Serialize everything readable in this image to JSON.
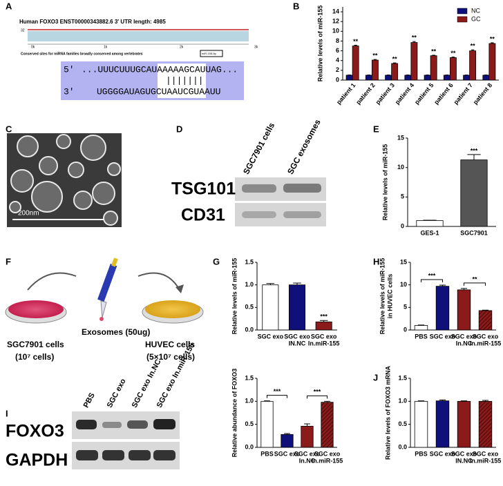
{
  "panel_labels": [
    "A",
    "B",
    "C",
    "D",
    "E",
    "F",
    "G",
    "H",
    "I",
    "J"
  ],
  "panel_a": {
    "title": "Human FOXO3  ENST00000343882.6  3' UTR length: 4985",
    "scale_max": "32",
    "axis_labels": [
      "0k",
      "1k",
      "2k",
      "3k"
    ],
    "conserved_text": "Conserved sites for miRNA families broadly conserved among vertebrates",
    "site_label": "miR-155-5p",
    "seq_top_end": "5'",
    "seq_top": "...UUUCUUUGCAUAAAAAGCAUUAG...",
    "pairing": "|||||||",
    "seq_bottom_end": "3'",
    "seq_bottom": "UGGGGAUAGUGCUAAUCGUAAUU"
  },
  "panel_c": {
    "scale_bar": "200nm"
  },
  "panel_d": {
    "lanes": [
      "SGC7901 cells",
      "SGC exosomes"
    ],
    "rows": [
      "TSG101",
      "CD31"
    ]
  },
  "panel_f": {
    "treatment": "Exosomes (50ug)",
    "donor": "SGC7901 cells",
    "donor_count": "(10⁷ cells)",
    "recipient": "HUVEC cells",
    "recipient_count": "(5×10⁷ cells)"
  },
  "panel_i_blot": {
    "lanes": [
      "PBS",
      "SGC exo",
      "SGC exo In.NC",
      "SGC exo In.miR-155"
    ],
    "rows": [
      "FOXO3",
      "GAPDH"
    ]
  },
  "chart_data": [
    {
      "type": "bar",
      "ylabel": "Relative levels of miR-155",
      "categories": [
        "patient 1",
        "patient 2",
        "patient 3",
        "patient 4",
        "patient 5",
        "patient 6",
        "patient 7",
        "patient 8"
      ],
      "series": [
        {
          "name": "NC",
          "color": "#10107a",
          "values": [
            1,
            1,
            1,
            1,
            1,
            1,
            1,
            1
          ],
          "errors": [
            0.05,
            0.05,
            0.05,
            0.05,
            0.05,
            0.05,
            0.05,
            0.05
          ]
        },
        {
          "name": "GC",
          "color": "#8b1a1a",
          "values": [
            7.0,
            4.1,
            3.4,
            7.7,
            5.0,
            4.6,
            6.0,
            7.5
          ],
          "errors": [
            0.15,
            0.12,
            0.12,
            0.2,
            0.1,
            0.12,
            0.2,
            0.15
          ],
          "annotations": [
            "**",
            "**",
            "**",
            "**",
            "**",
            "**",
            "**",
            "**"
          ]
        }
      ],
      "ylim": [
        0,
        15
      ],
      "yticks": [
        0,
        2,
        4,
        6,
        8,
        10,
        12,
        14
      ],
      "legend": "upper right",
      "label_rotation": -50
    },
    {
      "type": "bar",
      "ylabel": "Relative levels of miR-155",
      "categories": [
        "GES-1",
        "SGC7901"
      ],
      "values": [
        1,
        11.3
      ],
      "errors": [
        0.05,
        0.9
      ],
      "colors": [
        "#ffffff",
        "#555555"
      ],
      "annotations": [
        null,
        "***"
      ],
      "annotation_style": "star",
      "ylim": [
        0,
        15
      ],
      "yticks": [
        0,
        5,
        10,
        15
      ]
    },
    {
      "type": "bar",
      "ylabel": "Relative levels of miR-155",
      "categories": [
        [
          "SGC exo"
        ],
        [
          "SGC exo",
          "IN.NC"
        ],
        [
          "SGC exo",
          "In.miR-155"
        ]
      ],
      "values": [
        1.0,
        1.0,
        0.18
      ],
      "errors": [
        0.03,
        0.04,
        0.03
      ],
      "colors": [
        "#ffffff",
        "#10107a",
        "#8b1a1a"
      ],
      "annotations": [
        null,
        null,
        "***"
      ],
      "annotation_style": "star",
      "ylim": [
        0,
        1.5
      ],
      "yticks": [
        {
          "value": 0,
          "label": "0.0"
        },
        {
          "value": 0.5,
          "label": "0.5"
        },
        {
          "value": 1,
          "label": "1.0"
        },
        {
          "value": 1.5,
          "label": "1.5"
        }
      ]
    },
    {
      "type": "bar",
      "ylabel": [
        "Relative levels of miR-155",
        "in HUVEC cells"
      ],
      "categories": [
        [
          "PBS"
        ],
        [
          "SGC exo"
        ],
        [
          "SGC exo",
          "In.NC"
        ],
        [
          "SGC exo",
          "In.miR-155"
        ]
      ],
      "values": [
        1,
        9.7,
        8.9,
        4.3
      ],
      "errors": [
        0.1,
        0.25,
        0.3,
        0.1
      ],
      "colors": [
        "#ffffff",
        "#10107a",
        "#8b1a1a",
        "#8b1a1a"
      ],
      "hatched": [
        false,
        false,
        false,
        true
      ],
      "annotations": [
        null,
        "***",
        null,
        "**"
      ],
      "annotation_style": "bracket",
      "ylim": [
        0,
        15
      ],
      "yticks": [
        0,
        5,
        10,
        15
      ]
    },
    {
      "type": "bar",
      "ylabel": "Relative abundance of FOXO3",
      "categories": [
        [
          "PBS"
        ],
        [
          "SGC exo"
        ],
        [
          "SGC exo",
          "In.NC"
        ],
        [
          "SGC exo",
          "In.miR-155"
        ]
      ],
      "values": [
        1.0,
        0.28,
        0.46,
        0.98
      ],
      "errors": [
        0.01,
        0.02,
        0.05,
        0.02
      ],
      "colors": [
        "#ffffff",
        "#10107a",
        "#8b1a1a",
        "#8b1a1a"
      ],
      "hatched": [
        false,
        false,
        false,
        true
      ],
      "annotations": [
        null,
        "***",
        null,
        "***"
      ],
      "annotation_style": "bracket",
      "ylim": [
        0,
        1.5
      ],
      "yticks": [
        {
          "value": 0,
          "label": "0.0"
        },
        {
          "value": 0.5,
          "label": "0.5"
        },
        {
          "value": 1,
          "label": "1.0"
        },
        {
          "value": 1.5,
          "label": "1.5"
        }
      ]
    },
    {
      "type": "bar",
      "ylabel": "Relative levels of FOXO3 mRNA",
      "categories": [
        [
          "PBS"
        ],
        [
          "SGC exo"
        ],
        [
          "SGC exo",
          "IN.NC"
        ],
        [
          "SGC exo",
          "In.miR-155"
        ]
      ],
      "values": [
        1.0,
        1.01,
        1.0,
        1.0
      ],
      "errors": [
        0.01,
        0.02,
        0.01,
        0.02
      ],
      "colors": [
        "#ffffff",
        "#10107a",
        "#8b1a1a",
        "#8b1a1a"
      ],
      "hatched": [
        false,
        false,
        false,
        true
      ],
      "ylim": [
        0,
        1.5
      ],
      "yticks": [
        {
          "value": 0,
          "label": "0.0"
        },
        {
          "value": 0.5,
          "label": "0.5"
        },
        {
          "value": 1,
          "label": "1.0"
        },
        {
          "value": 1.5,
          "label": "1.5"
        }
      ]
    }
  ]
}
